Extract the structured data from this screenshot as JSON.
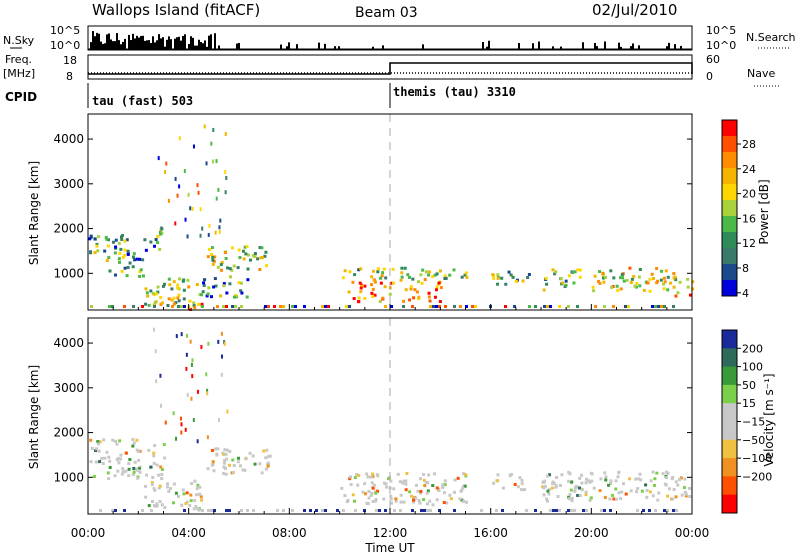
{
  "header": {
    "title": "Wallops Island (fitACF)",
    "beam": "Beam 03",
    "date": "02/Jul/2010"
  },
  "summary": {
    "nsky_label": "N.Sky",
    "nsearch_label": "N.Search",
    "nave_label": "Nave",
    "freq_label_1": "Freq.",
    "freq_label_2": "[MHz]",
    "cpid_label": "CPID",
    "nsky_ticks": [
      "10^5",
      "10^0"
    ],
    "nsearch_ticks": [
      "10^5",
      "10^0"
    ],
    "freq_ticks": [
      "18",
      "8"
    ],
    "nave_ticks": [
      "60",
      "0"
    ],
    "cpid_segments": [
      {
        "start_hour": 0,
        "label": "tau (fast) 503"
      },
      {
        "start_hour": 12,
        "label": "themis (tau) 3310"
      }
    ]
  },
  "chart_data": [
    {
      "type": "heatmap",
      "name": "power",
      "ylabel": "Slant Range [km]",
      "yticks": [
        "1000",
        "2000",
        "3000",
        "4000"
      ],
      "ylim": [
        180,
        4560
      ],
      "xlim_hours": [
        0,
        24
      ],
      "colorbar_label": "Power [dB]",
      "colorbar_ticks": [
        "28",
        "24",
        "20",
        "16",
        "12",
        "8",
        "4"
      ],
      "colorbar_colors": [
        "#ff0000",
        "#ff5000",
        "#ff8c00",
        "#f5b400",
        "#ffd700",
        "#a8d23c",
        "#4cb848",
        "#2e8b57",
        "#3a7a6a",
        "#1a4a8a",
        "#0000dd"
      ],
      "scatter_regions": [
        {
          "h0": 0.0,
          "h1": 1.6,
          "r0": 1300,
          "r1": 1900,
          "level": 0.35
        },
        {
          "h0": 0.8,
          "h1": 2.2,
          "r0": 900,
          "r1": 1500,
          "level": 0.3
        },
        {
          "h0": 2.2,
          "h1": 2.9,
          "r0": 1500,
          "r1": 2100,
          "level": 0.25
        },
        {
          "h0": 2.2,
          "h1": 4.5,
          "r0": 300,
          "r1": 950,
          "level": 0.5
        },
        {
          "h0": 3.6,
          "h1": 4.5,
          "r0": 150,
          "r1": 350,
          "level": 0.9
        },
        {
          "h0": 4.7,
          "h1": 7.1,
          "r0": 1100,
          "r1": 1650,
          "level": 0.5
        },
        {
          "h0": 4.5,
          "h1": 6.5,
          "r0": 500,
          "r1": 1000,
          "level": 0.35
        },
        {
          "h0": 10.0,
          "h1": 15.0,
          "r0": 900,
          "r1": 1150,
          "level": 0.45
        },
        {
          "h0": 10.3,
          "h1": 14.0,
          "r0": 400,
          "r1": 900,
          "level": 0.85
        },
        {
          "h0": 16.0,
          "h1": 17.5,
          "r0": 750,
          "r1": 1100,
          "level": 0.4
        },
        {
          "h0": 18.0,
          "h1": 19.6,
          "r0": 650,
          "r1": 1150,
          "level": 0.4
        },
        {
          "h0": 20.0,
          "h1": 23.3,
          "r0": 600,
          "r1": 1150,
          "level": 0.6
        },
        {
          "h0": 23.3,
          "h1": 24.0,
          "r0": 500,
          "r1": 900,
          "level": 0.75
        }
      ]
    },
    {
      "type": "heatmap",
      "name": "velocity",
      "ylabel": "Slant Range [km]",
      "yticks": [
        "1000",
        "2000",
        "3000",
        "4000"
      ],
      "ylim": [
        180,
        4560
      ],
      "xlim_hours": [
        0,
        24
      ],
      "xticks": [
        "00:00",
        "04:00",
        "08:00",
        "12:00",
        "16:00",
        "20:00",
        "00:00"
      ],
      "xlabel": "Time UT",
      "colorbar_label": "Velocity [m s⁻¹]",
      "colorbar_ticks": [
        "200",
        "100",
        "50",
        "15",
        "−15",
        "−50",
        "−100",
        "−200"
      ],
      "colorbar_colors": [
        "#1a2a9a",
        "#2e6a5a",
        "#3a9a3a",
        "#7ad04a",
        "#c8c8c8",
        "#c8c8c8",
        "#f0c040",
        "#f09020",
        "#ff5000",
        "#ff0000"
      ],
      "scatter_regions": [
        {
          "h0": 0.0,
          "h1": 3.0,
          "r0": 1000,
          "r1": 1900,
          "level": 0.4
        },
        {
          "h0": 2.2,
          "h1": 4.5,
          "r0": 300,
          "r1": 950,
          "level": 0.5
        },
        {
          "h0": 4.7,
          "h1": 7.2,
          "r0": 1100,
          "r1": 1700,
          "level": 0.3
        },
        {
          "h0": 10.0,
          "h1": 15.0,
          "r0": 400,
          "r1": 1150,
          "level": 0.5
        },
        {
          "h0": 16.0,
          "h1": 17.5,
          "r0": 750,
          "r1": 1100,
          "level": 0.5
        },
        {
          "h0": 18.0,
          "h1": 24.0,
          "r0": 500,
          "r1": 1150,
          "level": 0.5
        }
      ]
    }
  ]
}
